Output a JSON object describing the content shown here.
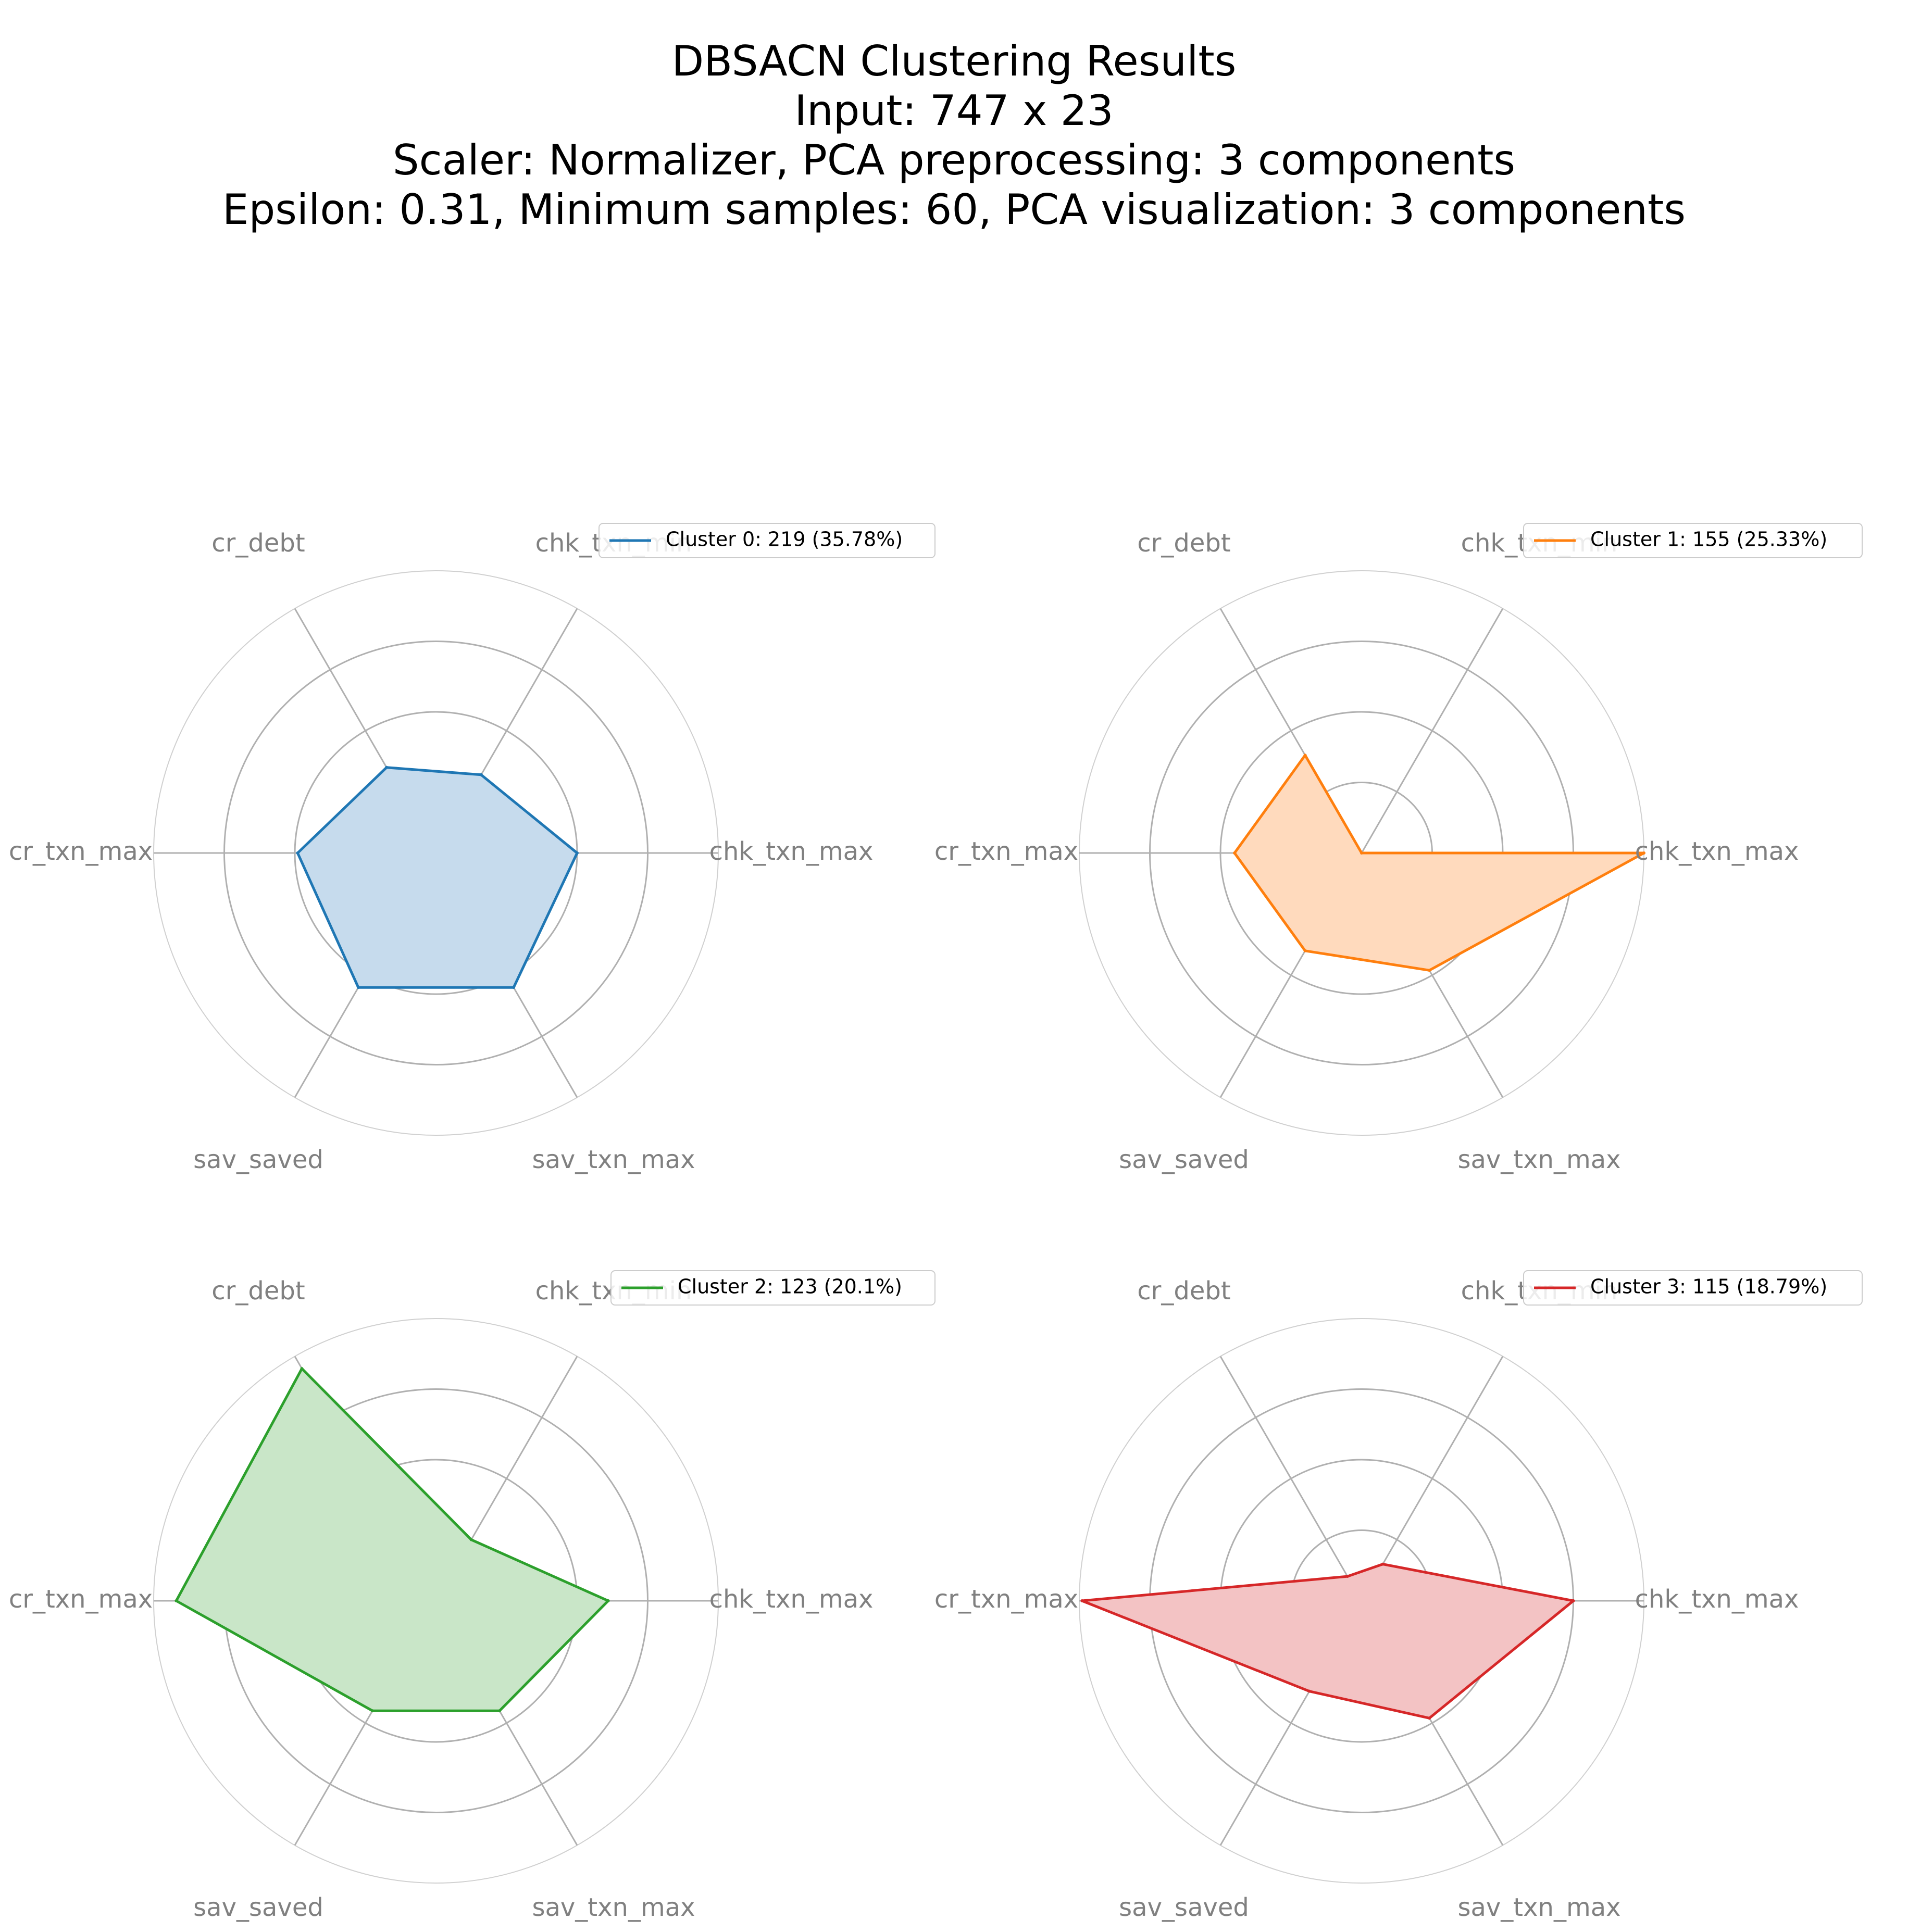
{
  "title_lines": [
    "DBSACN Clustering Results",
    "Input: 747 x 23",
    "Scaler: Normalizer, PCA preprocessing: 3 components",
    "Epsilon: 0.31, Minimum samples: 60, PCA visualization: 3 components"
  ],
  "chart_data": [
    {
      "type": "radar",
      "axes": [
        "chk_txn_max",
        "chk_txn_min",
        "cr_debt",
        "cr_txn_max",
        "sav_saved",
        "sav_txn_max"
      ],
      "rlim": [
        0,
        1
      ],
      "grid": true,
      "legend_position": "top-right",
      "series": [
        {
          "name": "Cluster 0: 219 (35.78%)",
          "values": [
            0.5,
            0.32,
            0.35,
            0.49,
            0.55,
            0.55
          ],
          "color": "#1f77b4",
          "fill": "#c6dbed"
        }
      ]
    },
    {
      "type": "radar",
      "axes": [
        "chk_txn_max",
        "chk_txn_min",
        "cr_debt",
        "cr_txn_max",
        "sav_saved",
        "sav_txn_max"
      ],
      "rlim": [
        0,
        1
      ],
      "grid": true,
      "legend_position": "top-right",
      "series": [
        {
          "name": "Cluster 1: 155 (25.33%)",
          "values": [
            1.0,
            0.0,
            0.4,
            0.45,
            0.4,
            0.48
          ],
          "color": "#ff7f0e",
          "fill": "#ffdabd"
        }
      ]
    },
    {
      "type": "radar",
      "axes": [
        "chk_txn_max",
        "chk_txn_min",
        "cr_debt",
        "cr_txn_max",
        "sav_saved",
        "sav_txn_max"
      ],
      "rlim": [
        0,
        1
      ],
      "grid": true,
      "legend_position": "top-right",
      "series": [
        {
          "name": "Cluster 2: 123 (20.1%)",
          "values": [
            0.61,
            0.25,
            0.95,
            0.92,
            0.45,
            0.45
          ],
          "color": "#2ca02c",
          "fill": "#c9e6c8"
        }
      ]
    },
    {
      "type": "radar",
      "axes": [
        "chk_txn_max",
        "chk_txn_min",
        "cr_debt",
        "cr_txn_max",
        "sav_saved",
        "sav_txn_max"
      ],
      "rlim": [
        0,
        1
      ],
      "grid": true,
      "legend_position": "top-right",
      "series": [
        {
          "name": "Cluster 3: 115 (18.79%)",
          "values": [
            0.75,
            0.15,
            0.1,
            0.99,
            0.37,
            0.48
          ],
          "color": "#d62728",
          "fill": "#f3c3c4"
        }
      ]
    }
  ]
}
